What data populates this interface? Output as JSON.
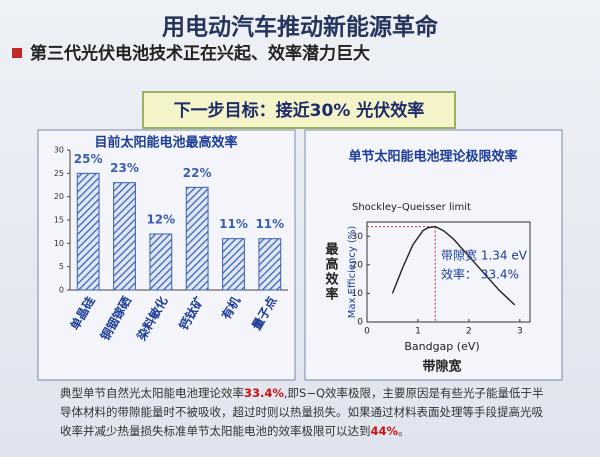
{
  "slide": {
    "title": "用电动汽车推动新能源革命",
    "bullet": "第三代光伏电池技术正在兴起、效率潜力巨大",
    "goal": "下一步目标：接近30% 光伏效率",
    "caption": [
      "典型单节自然光太阳能电池理论效率",
      "33.4%",
      ",即S−Q效率极限，主要原因是有些光子能量低于半导体材料的带隙能量时不被吸收，超过时则以热量损失。如果通过材料表面处理等手段提高光吸收率并减少热量损失标准单节太阳能电池的效率极限可以达到",
      "44%",
      "。"
    ]
  },
  "chart_data": [
    {
      "type": "bar",
      "title": "目前太阳能电池最高效率",
      "categories": [
        "单晶硅",
        "铜铟镓硒",
        "染料敏化",
        "钙钛矿",
        "有机",
        "量子点"
      ],
      "values": [
        25,
        23,
        12,
        22,
        11,
        11
      ],
      "value_labels": [
        "25%",
        "23%",
        "12%",
        "22%",
        "11%",
        "11%"
      ],
      "color": "#3a5fb0",
      "ylim": [
        0,
        30
      ],
      "yticks": [
        0,
        5,
        10,
        15,
        20,
        25,
        30
      ]
    },
    {
      "type": "line",
      "title": "单节太阳能电池理论极限效率",
      "x": [
        0.5,
        0.7,
        0.9,
        1.1,
        1.2,
        1.34,
        1.5,
        1.7,
        2.0,
        2.3,
        2.6,
        2.9
      ],
      "values": [
        10,
        19,
        27,
        32,
        33,
        33.4,
        32,
        29,
        23,
        17,
        11,
        6
      ],
      "color": "#222222",
      "xlim": [
        0,
        3.2
      ],
      "xticks": [
        0,
        1,
        2,
        3
      ],
      "ylim": [
        0,
        35
      ],
      "yticks": [
        0,
        10,
        20,
        30
      ],
      "x_label": "Bandgap (eV)",
      "y_label": "Max Efficiency (%)",
      "x_label_cn": "带隙宽",
      "y_label_cn": "最高效率",
      "curve_label": "Shockley–Queisser limit",
      "peak_x": 1.34,
      "peak_y": 33.4,
      "annotation_1": "带隙宽 1.34 eV",
      "annotation_2": "效率： 33.4%"
    }
  ]
}
